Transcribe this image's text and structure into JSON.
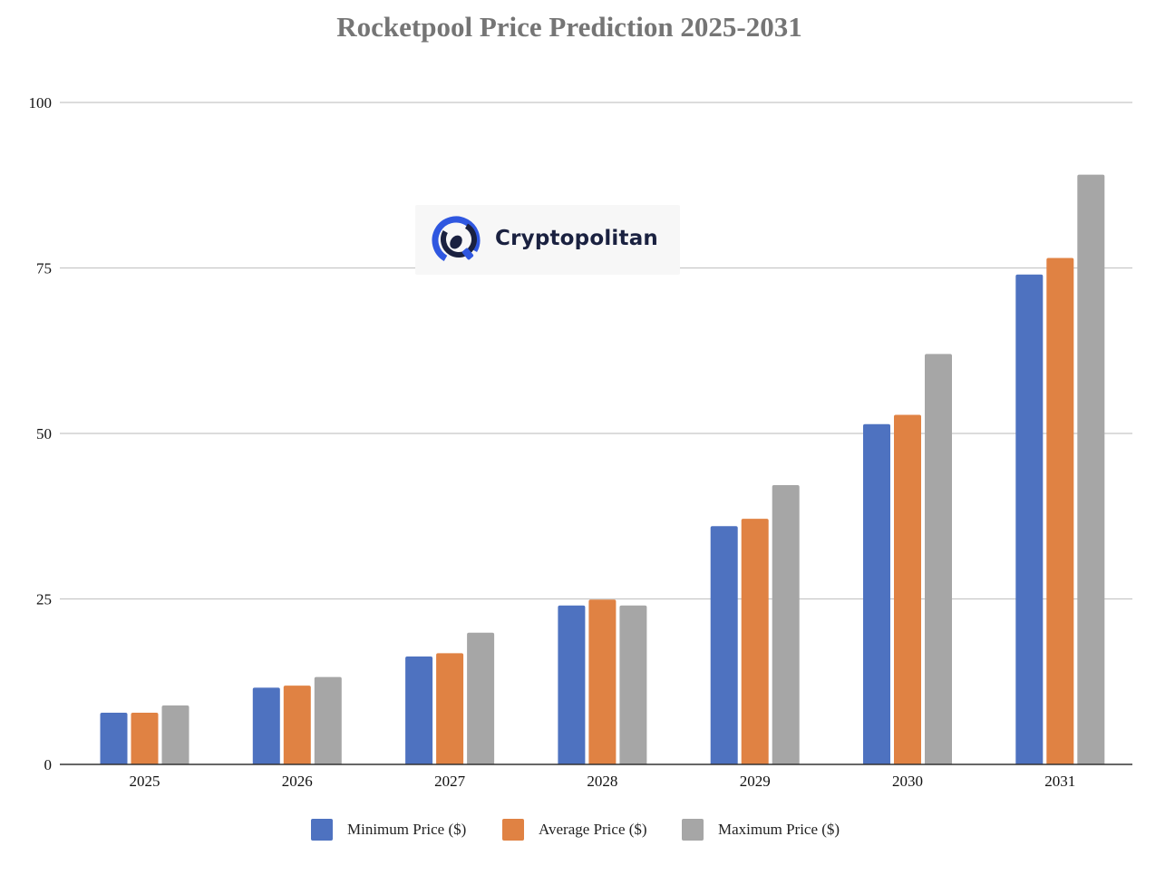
{
  "chart_data": {
    "type": "bar",
    "title": "Rocketpool Price Prediction 2025-2031",
    "xlabel": "",
    "ylabel": "",
    "categories": [
      "2025",
      "2026",
      "2027",
      "2028",
      "2029",
      "2030",
      "2031"
    ],
    "series": [
      {
        "name": "Minimum Price ($)",
        "color": "#4e72c0",
        "values": [
          7.8,
          11.6,
          16.3,
          24.0,
          36.0,
          51.4,
          74.0
        ]
      },
      {
        "name": "Average Price ($)",
        "color": "#e08243",
        "values": [
          7.8,
          11.9,
          16.8,
          24.9,
          37.1,
          52.8,
          76.5
        ]
      },
      {
        "name": "Maximum Price ($)",
        "color": "#a6a6a6",
        "values": [
          8.9,
          13.2,
          19.9,
          24.0,
          42.2,
          62.0,
          89.1
        ]
      }
    ],
    "ylim": [
      0,
      100
    ],
    "yticks": [
      "0",
      "25",
      "50",
      "75",
      "100"
    ],
    "grid": true,
    "legend_position": "bottom"
  },
  "watermark": {
    "text": "Cryptopolitan",
    "icon": "cryptopolitan-logo-icon"
  },
  "colors": {
    "title": "#757575",
    "gridline": "#c8c8c8",
    "axis": "#333333"
  }
}
